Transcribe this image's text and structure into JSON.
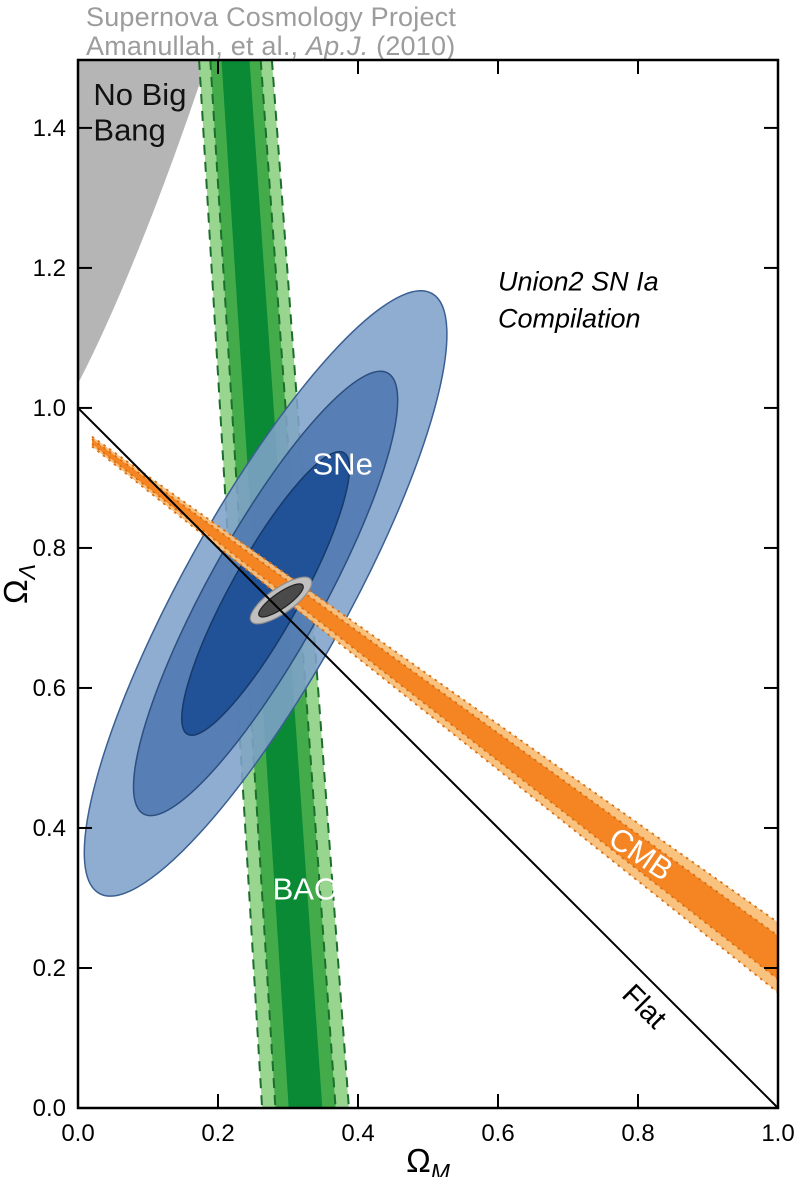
{
  "header": {
    "line1": "Supernova Cosmology Project",
    "line2_prefix": "Amanullah, et al., ",
    "line2_italic": "Ap.J.",
    "line2_suffix": " (2010)"
  },
  "chart_data": {
    "type": "contour",
    "description": "Confidence regions in the Omega_M vs Omega_Lambda plane: SNe (Union2 compilation, blue ellipses), BAO (green band), CMB (orange band), combined fit (small gray contour near 0.28, 0.73), Flat-universe line and No Big Bang region.",
    "xlabel_main": "Ω",
    "xlabel_sub": "M",
    "ylabel_main": "Ω",
    "ylabel_sub": "Λ",
    "xlim": [
      0.0,
      1.0
    ],
    "ylim": [
      0.0,
      1.497
    ],
    "xtick_labels": [
      "0.0",
      "0.2",
      "0.4",
      "0.6",
      "0.8",
      "1.0"
    ],
    "xtick_values": [
      0.0,
      0.2,
      0.4,
      0.6,
      0.8,
      1.0
    ],
    "ytick_labels": [
      "0.0",
      "0.2",
      "0.4",
      "0.6",
      "0.8",
      "1.0",
      "1.2",
      "1.4"
    ],
    "ytick_values": [
      0.0,
      0.2,
      0.4,
      0.6,
      0.8,
      1.0,
      1.2,
      1.4
    ],
    "background": "#ffffff",
    "frame_color": "#000000",
    "no_big_bang_region": {
      "color": "#b5b5b5",
      "edge_start": [
        0.0,
        1.035
      ],
      "bezier": [
        [
          0.05,
          1.13
        ],
        [
          0.12,
          1.3
        ],
        [
          0.185,
          1.497
        ]
      ]
    },
    "flat_line": {
      "from": [
        0.0,
        1.0
      ],
      "to": [
        1.0,
        0.0
      ],
      "color": "#000000"
    },
    "bao_band": {
      "center_top_x": 0.225,
      "center_bottom_x": 0.325,
      "halfwidths_top": [
        0.052,
        0.036,
        0.02
      ],
      "halfwidths_bottom": [
        0.062,
        0.043,
        0.024
      ],
      "colors": [
        "#98d690",
        "#43ab4a",
        "#0a8a35"
      ],
      "edge_color": "#1c6e2d"
    },
    "cmb_band": {
      "start_x": 0.02,
      "start_y": 0.952,
      "end_x": 1.0,
      "end_y": 0.215,
      "halfwidth_start": [
        0.007,
        0.0035
      ],
      "halfwidth_end": [
        0.05,
        0.031
      ],
      "colors": [
        "#f9c07a",
        "#f5821f"
      ],
      "edge_color": "#d96f12"
    },
    "sne_ellipses": {
      "center": [
        0.268,
        0.735
      ],
      "angle_deg": -61,
      "radii": [
        [
          0.49,
          0.118
        ],
        [
          0.36,
          0.082
        ],
        [
          0.23,
          0.05
        ]
      ],
      "colors": [
        "#7fa2cb",
        "#5079b1",
        "#1e4f94"
      ],
      "edge_colors": [
        "#3a5f92",
        "#2c4f80",
        "#163a6b"
      ]
    },
    "combined_contour": {
      "center": [
        0.29,
        0.725
      ],
      "angle_deg": -35,
      "radii": [
        [
          0.052,
          0.018
        ],
        [
          0.038,
          0.011
        ]
      ],
      "colors": [
        "#c0c0c0",
        "#4a4a4a"
      ],
      "edge_colors": [
        "#8f8f8f",
        "#222222"
      ]
    },
    "annotations": [
      {
        "text": "No Big",
        "x": 0.022,
        "y": 1.433,
        "size": 31,
        "color": "#111111",
        "anchor": "start"
      },
      {
        "text": "Bang",
        "x": 0.022,
        "y": 1.382,
        "size": 31,
        "color": "#111111",
        "anchor": "start"
      },
      {
        "text": "Union2 SN Ia",
        "x": 0.6,
        "y": 1.168,
        "size": 27,
        "style": "italic",
        "color": "#000000",
        "anchor": "start"
      },
      {
        "text": "Compilation",
        "x": 0.6,
        "y": 1.115,
        "size": 27,
        "style": "italic",
        "color": "#000000",
        "anchor": "start"
      },
      {
        "text": "SNe",
        "x": 0.335,
        "y": 0.905,
        "size": 31,
        "color": "#ffffff",
        "anchor": "start"
      },
      {
        "text": "BAO",
        "x": 0.278,
        "y": 0.298,
        "size": 31,
        "color": "#ffffff",
        "anchor": "start"
      },
      {
        "text": "CMB",
        "x": 0.755,
        "y": 0.378,
        "size": 31,
        "color": "#ffffff",
        "anchor": "start",
        "rotate": 34
      },
      {
        "text": "Flat",
        "x": 0.775,
        "y": 0.16,
        "size": 29,
        "color": "#000000",
        "anchor": "start",
        "rotate": 45
      }
    ]
  }
}
